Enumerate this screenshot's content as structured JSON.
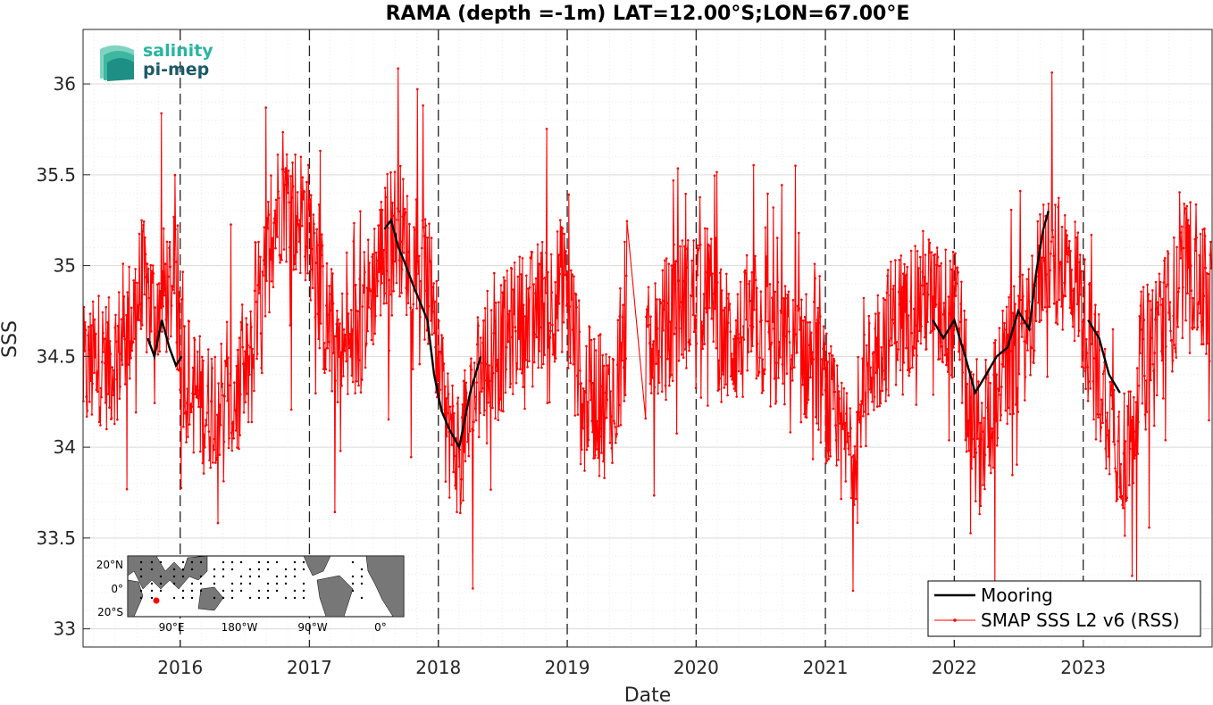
{
  "chart_data": {
    "type": "line",
    "title": "RAMA (depth =-1m) LAT=12.00°S;LON=67.00°E",
    "xlabel": "Date",
    "ylabel": "SSS",
    "xlim": [
      "2015-04-01",
      "2024-01-01"
    ],
    "ylim": [
      32.9,
      36.3
    ],
    "x_ticks": [
      "2016",
      "2017",
      "2018",
      "2019",
      "2020",
      "2021",
      "2022",
      "2023"
    ],
    "y_ticks": [
      "33",
      "33.5",
      "34",
      "34.5",
      "35",
      "35.5",
      "36"
    ],
    "year_markers": [
      "2016-01-01",
      "2017-01-01",
      "2018-01-01",
      "2019-01-01",
      "2020-01-01",
      "2021-01-01",
      "2022-01-01",
      "2023-01-01"
    ],
    "grid": "on",
    "legend_position": "bottom-right",
    "series": [
      {
        "name": "Mooring",
        "color": "#000000",
        "segments": [
          {
            "x": [
              "2015-10-01",
              "2015-10-20",
              "2015-11-10",
              "2015-12-01",
              "2015-12-20",
              "2016-01-05"
            ],
            "y": [
              34.6,
              34.5,
              34.7,
              34.55,
              34.45,
              34.5
            ]
          },
          {
            "x": [
              "2017-08-01",
              "2017-08-20",
              "2017-09-10",
              "2017-10-01",
              "2017-10-20",
              "2017-11-10",
              "2017-12-01",
              "2017-12-20",
              "2018-01-10",
              "2018-02-01",
              "2018-03-01",
              "2018-04-01",
              "2018-05-01"
            ],
            "y": [
              35.2,
              35.25,
              35.1,
              35.0,
              34.9,
              34.8,
              34.7,
              34.4,
              34.2,
              34.1,
              34.0,
              34.3,
              34.5
            ]
          },
          {
            "x": [
              "2021-11-01",
              "2021-12-01",
              "2022-01-01",
              "2022-02-01",
              "2022-03-01",
              "2022-04-01",
              "2022-05-01",
              "2022-06-01",
              "2022-07-01",
              "2022-08-01",
              "2022-08-20",
              "2022-09-10",
              "2022-09-25"
            ],
            "y": [
              34.7,
              34.6,
              34.7,
              34.5,
              34.3,
              34.4,
              34.5,
              34.55,
              34.75,
              34.65,
              34.95,
              35.2,
              35.3
            ]
          },
          {
            "x": [
              "2023-01-15",
              "2023-02-15",
              "2023-03-15",
              "2023-04-15"
            ],
            "y": [
              34.7,
              34.6,
              34.4,
              34.3
            ]
          }
        ]
      },
      {
        "name": "SMAP SSS L2 v6 (RSS)",
        "color": "#ff0000",
        "x": [
          "2015-04",
          "2015-05",
          "2015-06",
          "2015-07",
          "2015-08",
          "2015-09",
          "2015-10",
          "2015-11",
          "2015-12",
          "2016-01",
          "2016-02",
          "2016-03",
          "2016-04",
          "2016-05",
          "2016-06",
          "2016-07",
          "2016-08",
          "2016-09",
          "2016-10",
          "2016-11",
          "2016-12",
          "2017-01",
          "2017-02",
          "2017-03",
          "2017-04",
          "2017-05",
          "2017-06",
          "2017-07",
          "2017-08",
          "2017-09",
          "2017-10",
          "2017-11",
          "2017-12",
          "2018-01",
          "2018-02",
          "2018-03",
          "2018-04",
          "2018-05",
          "2018-06",
          "2018-07",
          "2018-08",
          "2018-09",
          "2018-10",
          "2018-11",
          "2018-12",
          "2019-01",
          "2019-02",
          "2019-03",
          "2019-04",
          "2019-05",
          "2019-06",
          "2019-07",
          "2019-08",
          "2019-09",
          "2019-10",
          "2019-11",
          "2019-12",
          "2020-01",
          "2020-02",
          "2020-03",
          "2020-04",
          "2020-05",
          "2020-06",
          "2020-07",
          "2020-08",
          "2020-09",
          "2020-10",
          "2020-11",
          "2020-12",
          "2021-01",
          "2021-02",
          "2021-03",
          "2021-04",
          "2021-05",
          "2021-06",
          "2021-07",
          "2021-08",
          "2021-09",
          "2021-10",
          "2021-11",
          "2021-12",
          "2022-01",
          "2022-02",
          "2022-03",
          "2022-04",
          "2022-05",
          "2022-06",
          "2022-07",
          "2022-08",
          "2022-09",
          "2022-10",
          "2022-11",
          "2022-12",
          "2023-01",
          "2023-02",
          "2023-03",
          "2023-04",
          "2023-05",
          "2023-06",
          "2023-07",
          "2023-08",
          "2023-09",
          "2023-10",
          "2023-11",
          "2023-12"
        ],
        "y": [
          34.4,
          34.5,
          34.45,
          34.55,
          34.7,
          34.9,
          34.75,
          34.85,
          34.9,
          34.4,
          34.3,
          34.2,
          34.3,
          34.2,
          34.3,
          34.4,
          34.7,
          35.2,
          35.4,
          35.3,
          35.3,
          35.1,
          34.7,
          34.6,
          34.5,
          34.6,
          34.8,
          35.0,
          35.2,
          35.2,
          35.0,
          35.0,
          34.8,
          34.2,
          34.0,
          34.0,
          34.3,
          34.5,
          34.5,
          34.6,
          34.7,
          34.7,
          34.8,
          34.8,
          34.9,
          34.7,
          34.3,
          34.3,
          34.2,
          34.3,
          34.6,
          34.6,
          34.5,
          34.6,
          34.7,
          34.8,
          34.8,
          34.9,
          34.8,
          34.6,
          34.6,
          34.6,
          34.7,
          34.6,
          34.55,
          34.55,
          34.5,
          34.5,
          34.4,
          34.2,
          34.0,
          34.0,
          34.2,
          34.5,
          34.6,
          34.7,
          34.75,
          34.8,
          34.85,
          34.75,
          34.75,
          34.7,
          34.1,
          34.0,
          34.2,
          34.4,
          34.5,
          34.6,
          34.8,
          35.1,
          35.0,
          35.0,
          34.9,
          34.6,
          34.4,
          34.2,
          34.0,
          34.0,
          34.5,
          34.6,
          34.7,
          34.8,
          35.0,
          35.0,
          34.8
        ]
      }
    ]
  },
  "logo": {
    "line1": "salinity",
    "line2": "pi-mep"
  },
  "inset_map": {
    "lat_labels": [
      "20°N",
      "0°",
      "20°S"
    ],
    "lon_labels": [
      "90°E",
      "180°W",
      "90°W",
      "0°"
    ],
    "marker_color": "#ff0000"
  }
}
